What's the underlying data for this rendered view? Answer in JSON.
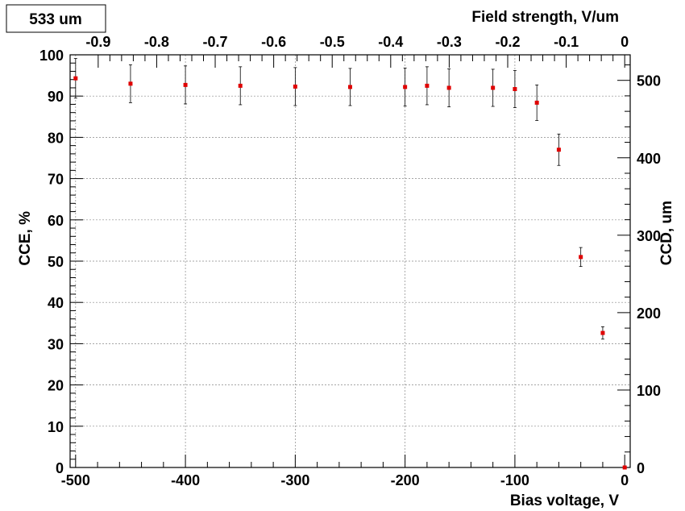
{
  "chart_data": {
    "type": "scatter",
    "title": "533 um",
    "xlabel": "Bias voltage, V",
    "ylabel": "CCE, %",
    "top_axis_label": "Field strength, V/um",
    "right_axis_label": "CCD, um",
    "xlim": [
      -505,
      5
    ],
    "ylim": [
      0,
      100
    ],
    "top_lim": [
      -0.948,
      0.0094
    ],
    "right_lim": [
      0,
      533
    ],
    "grid": true,
    "x_ticks": [
      "-500",
      "-400",
      "-300",
      "-200",
      "-100",
      "0"
    ],
    "y_ticks": [
      "0",
      "10",
      "20",
      "30",
      "40",
      "50",
      "60",
      "70",
      "80",
      "90",
      "100"
    ],
    "top_ticks": [
      "-0.9",
      "-0.8",
      "-0.7",
      "-0.6",
      "-0.5",
      "-0.4",
      "-0.3",
      "-0.2",
      "-0.1",
      "0"
    ],
    "right_ticks": [
      "0",
      "100",
      "200",
      "300",
      "400",
      "500"
    ],
    "marker_color": "#e00000",
    "series": [
      {
        "x": [
          -500,
          -450,
          -400,
          -350,
          -300,
          -250,
          -200,
          -180,
          -160,
          -120,
          -100,
          -80,
          -60,
          -40,
          -20,
          0
        ],
        "y": [
          94.3,
          93.0,
          92.7,
          92.5,
          92.3,
          92.2,
          92.2,
          92.5,
          92.0,
          92.0,
          91.7,
          88.4,
          77.0,
          51.0,
          32.6,
          0.0
        ],
        "err": [
          4.8,
          4.6,
          4.6,
          4.6,
          4.6,
          4.5,
          4.6,
          4.6,
          4.6,
          4.5,
          4.5,
          4.3,
          3.8,
          2.3,
          1.5,
          0.0
        ]
      }
    ]
  }
}
